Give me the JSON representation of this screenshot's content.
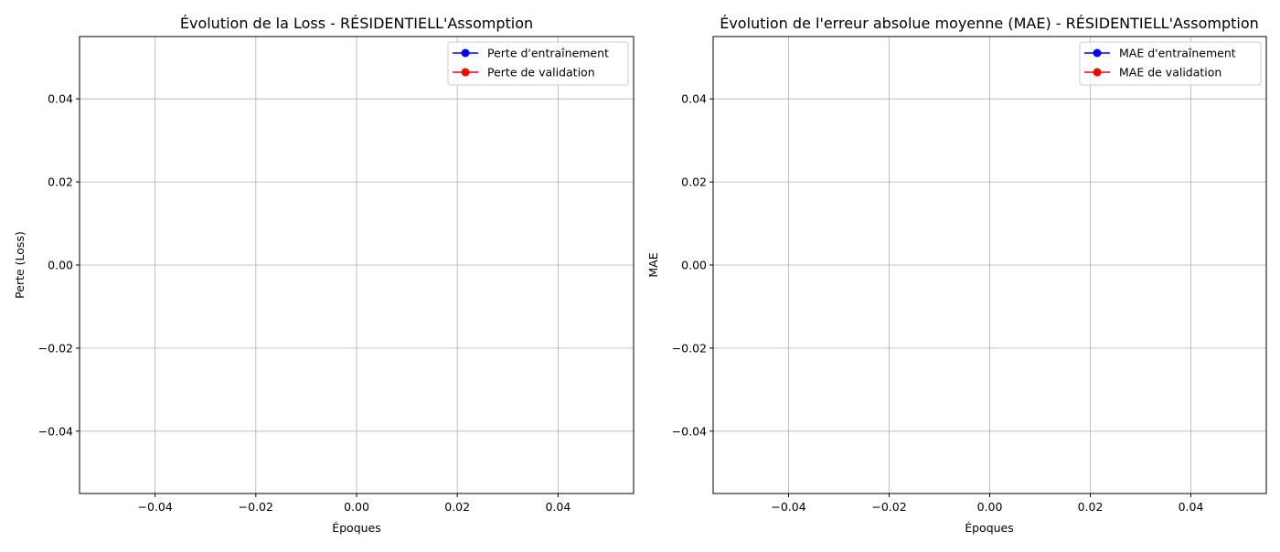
{
  "chart_data": [
    {
      "type": "line",
      "title": "Évolution de la Loss - RÉSIDENTIELL'Assomption",
      "xlabel": "Époques",
      "ylabel": "Perte (Loss)",
      "xlim": [
        -0.055,
        0.055
      ],
      "ylim": [
        -0.055,
        0.055
      ],
      "x_ticks": [
        -0.04,
        -0.02,
        0.0,
        0.02,
        0.04
      ],
      "x_tick_labels": [
        "−0.04",
        "−0.02",
        "0.00",
        "0.02",
        "0.04"
      ],
      "y_ticks": [
        -0.04,
        -0.02,
        0.0,
        0.02,
        0.04
      ],
      "y_tick_labels": [
        "−0.04",
        "−0.02",
        "0.00",
        "0.02",
        "0.04"
      ],
      "grid": true,
      "legend_position": "top-right",
      "series": [
        {
          "name": "Perte d'entraînement",
          "color": "#0000ff",
          "marker": "circle",
          "x": [],
          "values": []
        },
        {
          "name": "Perte de validation",
          "color": "#ff0000",
          "marker": "circle",
          "x": [],
          "values": []
        }
      ]
    },
    {
      "type": "line",
      "title": "Évolution de l'erreur absolue moyenne (MAE) - RÉSIDENTIELL'Assomption",
      "xlabel": "Époques",
      "ylabel": "MAE",
      "xlim": [
        -0.055,
        0.055
      ],
      "ylim": [
        -0.055,
        0.055
      ],
      "x_ticks": [
        -0.04,
        -0.02,
        0.0,
        0.02,
        0.04
      ],
      "x_tick_labels": [
        "−0.04",
        "−0.02",
        "0.00",
        "0.02",
        "0.04"
      ],
      "y_ticks": [
        -0.04,
        -0.02,
        0.0,
        0.02,
        0.04
      ],
      "y_tick_labels": [
        "−0.04",
        "−0.02",
        "0.00",
        "0.02",
        "0.04"
      ],
      "grid": true,
      "legend_position": "top-right",
      "series": [
        {
          "name": "MAE d'entraînement",
          "color": "#0000ff",
          "marker": "circle",
          "x": [],
          "values": []
        },
        {
          "name": "MAE de validation",
          "color": "#ff0000",
          "marker": "circle",
          "x": [],
          "values": []
        }
      ]
    }
  ]
}
